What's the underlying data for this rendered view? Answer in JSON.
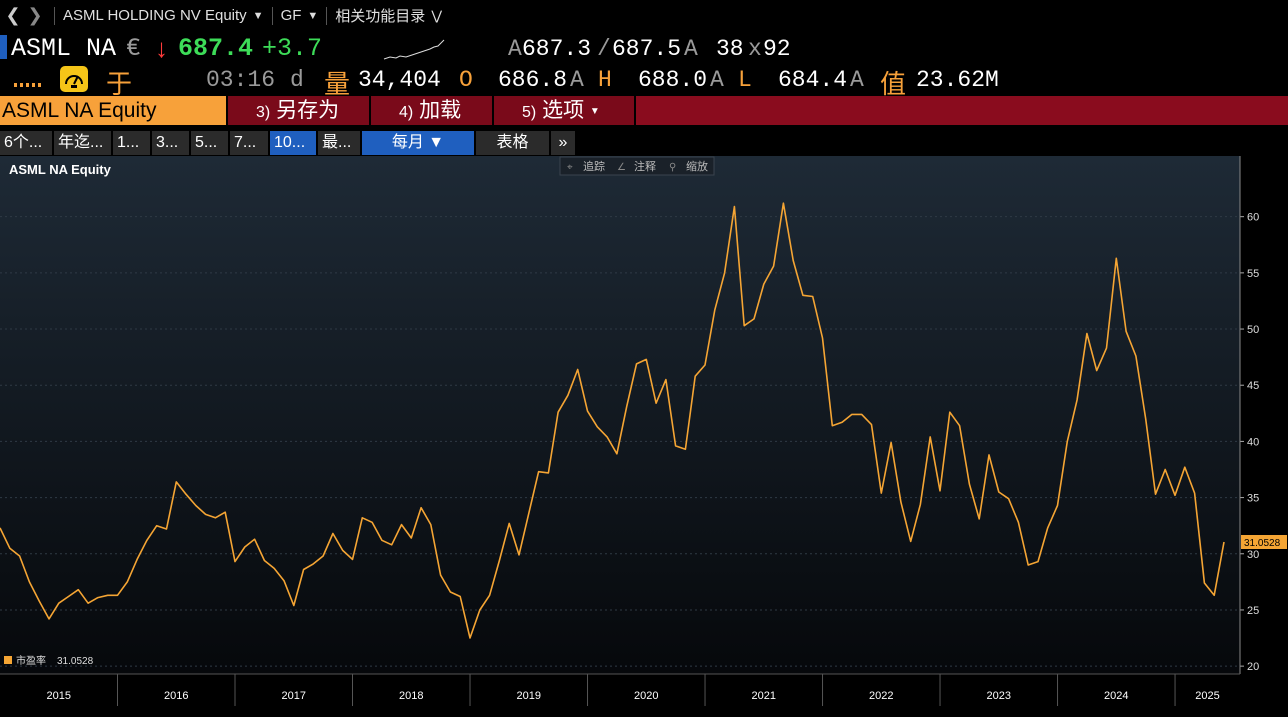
{
  "nav": {
    "back_icon": "chevron-left-icon",
    "forward_icon": "chevron-right-icon",
    "security": "ASML HOLDING NV Equity",
    "function": "GF",
    "related": "相关功能目录"
  },
  "quote": {
    "ticker": "ASML NA",
    "currency": "€",
    "direction_icon": "down-arrow-icon",
    "price": "687.4",
    "change": "+3.7",
    "bid_label": "A",
    "bid": "687.3",
    "ask": "687.5",
    "ask_label": "A",
    "size": "38",
    "size_x": "x",
    "size2": "92",
    "market_label": "于",
    "time": "03:16",
    "time_suffix": "d",
    "volume_label": "量",
    "volume": "34,404",
    "open_label": "O",
    "open": "686.8",
    "open_suffix": "A",
    "high_label": "H",
    "high": "688.0",
    "high_suffix": "A",
    "low_label": "L",
    "low": "684.4",
    "low_suffix": "A",
    "value_label": "值",
    "value": "23.62M"
  },
  "menu": {
    "equity": "ASML NA Equity",
    "save_num": "3)",
    "save": "另存为",
    "load_num": "4)",
    "load": "加载",
    "options_num": "5)",
    "options": "选项"
  },
  "timeframes": [
    "6个...",
    "年迄...",
    "1...",
    "3...",
    "5...",
    "7...",
    "10...",
    "最..."
  ],
  "period": "每月 ▼",
  "table_btn": "表格",
  "more_btn": "»",
  "chart_tools": {
    "track": "追踪",
    "annotate": "注释",
    "zoom": "缩放"
  },
  "colors": {
    "line": "#f5a534",
    "accent_orange": "#f7a13a",
    "menu_red": "#7a0a1a",
    "up_green": "#3ddc58",
    "down_red": "#ff3b3b",
    "active_blue": "#1f5fbf"
  },
  "chart_data": {
    "type": "line",
    "title": "ASML NA Equity",
    "series": [
      {
        "name": "市盈率",
        "last": "31.0528",
        "values": [
          32.3,
          30.5,
          29.8,
          27.5,
          25.8,
          24.2,
          25.6,
          26.2,
          26.8,
          25.6,
          26.1,
          26.3,
          26.3,
          27.5,
          29.5,
          31.2,
          32.5,
          32.2,
          36.4,
          35.3,
          34.3,
          33.5,
          33.2,
          33.7,
          29.3,
          30.6,
          31.3,
          29.4,
          28.7,
          27.6,
          25.4,
          28.6,
          29.1,
          29.8,
          31.8,
          30.3,
          29.5,
          33.2,
          32.8,
          31.2,
          30.8,
          32.6,
          31.4,
          34.1,
          32.6,
          28.1,
          26.6,
          26.2,
          22.5,
          25.0,
          26.3,
          29.4,
          32.7,
          29.9,
          33.6,
          37.3,
          37.2,
          42.6,
          44.1,
          46.4,
          42.7,
          41.3,
          40.4,
          38.9,
          43.1,
          46.9,
          47.3,
          43.4,
          45.5,
          39.6,
          39.3,
          45.8,
          46.8,
          51.7,
          55.0,
          60.9,
          50.3,
          50.9,
          54.0,
          55.6,
          61.2,
          56.1,
          53.0,
          52.9,
          49.2,
          41.4,
          41.7,
          42.4,
          42.4,
          41.5,
          35.4,
          39.9,
          34.6,
          31.1,
          34.4,
          40.4,
          35.6,
          42.6,
          41.4,
          36.2,
          33.1,
          38.8,
          35.5,
          34.9,
          32.8,
          29.0,
          29.3,
          32.3,
          34.3,
          40.0,
          43.7,
          49.6,
          46.3,
          48.3,
          56.3,
          49.8,
          47.6,
          42.0,
          35.3,
          37.5,
          35.2,
          37.7,
          35.4,
          27.4,
          26.3,
          31.05
        ]
      }
    ],
    "x_labels": [
      "2015",
      "2016",
      "2017",
      "2018",
      "2019",
      "2020",
      "2021",
      "2022",
      "2023",
      "2024",
      "2025"
    ],
    "y_ticks": [
      "20",
      "25",
      "30",
      "35",
      "40",
      "45",
      "50",
      "55",
      "60"
    ],
    "ylim": [
      19.3,
      65.4
    ],
    "grid": true,
    "legend": "bottom-left"
  }
}
